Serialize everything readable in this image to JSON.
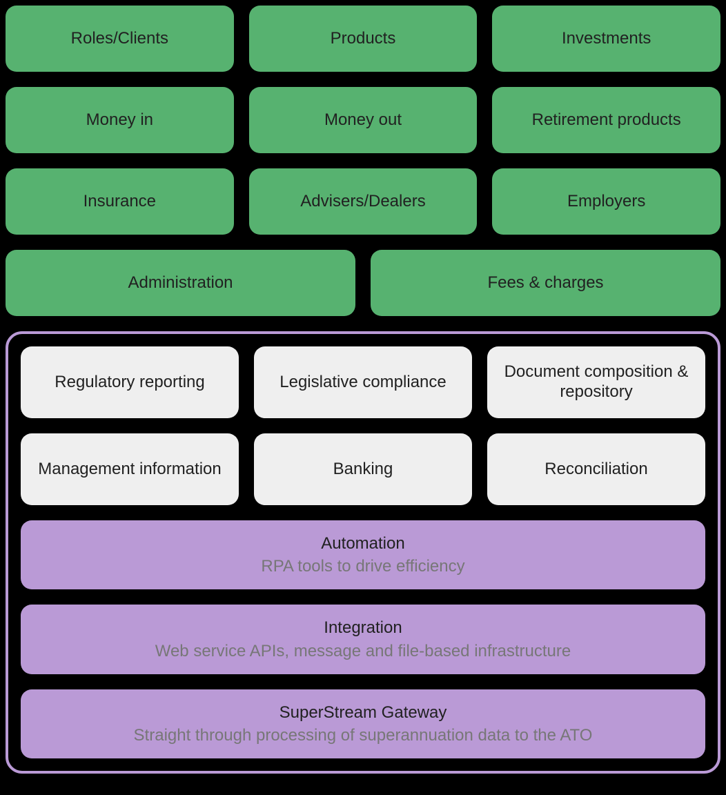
{
  "styling": {
    "colors": {
      "background": "#000000",
      "green_box": "#57B270",
      "green_text": "#212121",
      "grey_box": "#EFEFEF",
      "grey_text": "#212121",
      "purple_border": "#BA9AD6",
      "purple_box": "#BA9AD6",
      "purple_title_text": "#212121",
      "purple_sub_text": "#777777"
    },
    "border_radius": 16,
    "panel_border_radius": 24,
    "panel_border_width": 4,
    "gap": 22,
    "font_family": "system-ui",
    "font_size_title": 24,
    "font_size_sub": 24,
    "green_box_height": 96,
    "grey_box_height": 104
  },
  "top_section": {
    "type": "grid",
    "row1": [
      {
        "label": "Roles/Clients"
      },
      {
        "label": "Products"
      },
      {
        "label": "Investments"
      }
    ],
    "row2": [
      {
        "label": "Money in"
      },
      {
        "label": "Money out"
      },
      {
        "label": "Retirement products"
      }
    ],
    "row3": [
      {
        "label": "Insurance"
      },
      {
        "label": "Advisers/Dealers"
      },
      {
        "label": "Employers"
      }
    ],
    "row4": [
      {
        "label": "Administration"
      },
      {
        "label": "Fees & charges"
      }
    ]
  },
  "bottom_panel": {
    "type": "panel",
    "grey_row1": [
      {
        "label": "Regulatory reporting"
      },
      {
        "label": "Legislative compliance"
      },
      {
        "label": "Document composition & repository"
      }
    ],
    "grey_row2": [
      {
        "label": "Management information"
      },
      {
        "label": "Banking"
      },
      {
        "label": "Reconciliation"
      }
    ],
    "purple_rows": [
      {
        "title": "Automation",
        "subtitle": "RPA tools to drive efficiency"
      },
      {
        "title": "Integration",
        "subtitle": "Web service APIs, message and file-based infrastructure"
      },
      {
        "title": "SuperStream Gateway",
        "subtitle": "Straight through processing of superannuation data to the ATO"
      }
    ]
  }
}
